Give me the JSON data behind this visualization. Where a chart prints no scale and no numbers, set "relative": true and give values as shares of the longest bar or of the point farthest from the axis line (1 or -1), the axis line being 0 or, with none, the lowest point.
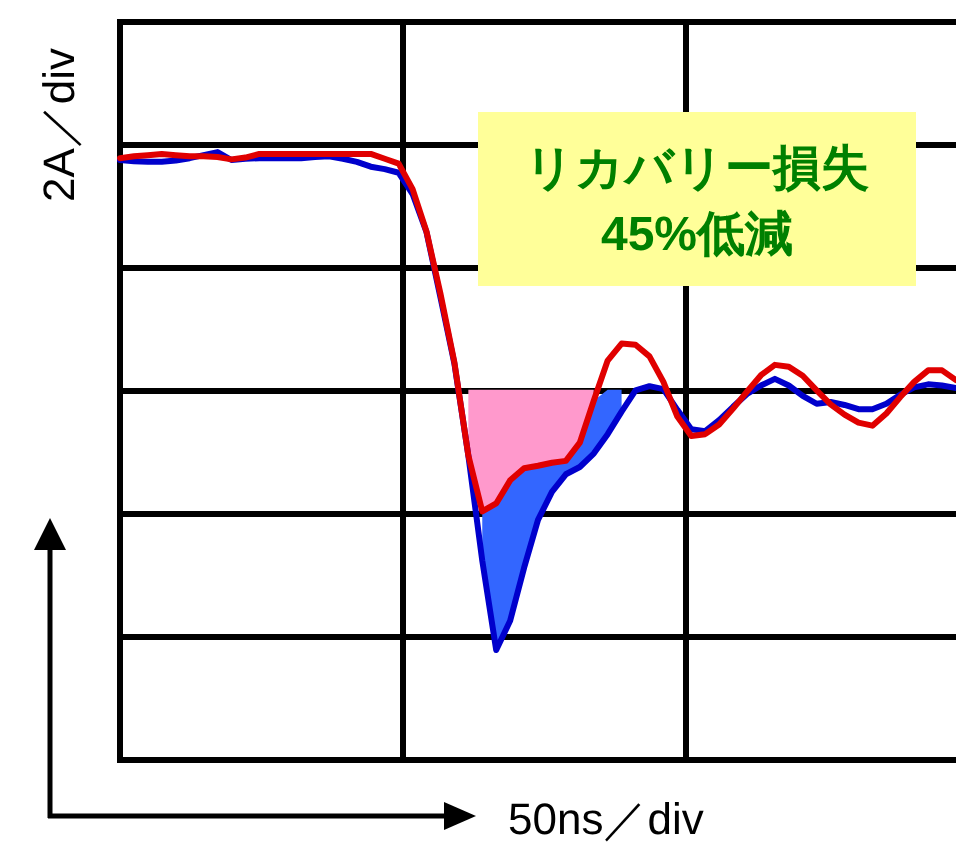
{
  "chart_data": {
    "type": "line",
    "relative": true,
    "grid": true,
    "xlabel": "50ns／div",
    "ylabel": "2A／div",
    "annotations": [
      "リカバリー損失\n45%低減"
    ],
    "categories": [
      null,
      null,
      null,
      null,
      null,
      null,
      null,
      null,
      null,
      null,
      null,
      null,
      null,
      null,
      null,
      null,
      null,
      null,
      null,
      null,
      null,
      null,
      null,
      null,
      null,
      null,
      null,
      null,
      null,
      null,
      null,
      null,
      null,
      null,
      null,
      null,
      null,
      null,
      null,
      null,
      null,
      null,
      null,
      null,
      null,
      null,
      null,
      null,
      null,
      null,
      null,
      null,
      null,
      null,
      null,
      null,
      null,
      null,
      null,
      null,
      null
    ],
    "series": [
      {
        "color": "#ff99cc",
        "values": [
          null,
          null,
          null,
          null,
          null,
          null,
          null,
          null,
          null,
          null,
          null,
          null,
          null,
          null,
          null,
          null,
          null,
          null,
          null,
          null,
          null,
          null,
          null,
          null,
          null,
          null,
          null,
          null,
          null,
          null,
          null,
          null,
          null,
          null,
          null,
          null,
          null,
          null,
          null,
          null,
          null,
          null,
          null,
          null,
          null,
          null,
          null,
          null,
          null,
          null,
          null,
          null,
          null,
          null,
          null,
          null,
          null,
          null,
          null,
          null,
          null
        ],
        "upper": [
          null,
          null,
          null,
          null,
          null,
          null,
          null,
          null,
          null,
          null,
          null,
          null,
          null,
          null,
          null,
          null,
          null,
          null,
          null,
          null,
          null,
          null,
          null,
          null,
          null,
          0.609,
          0.609,
          0.609,
          0.609,
          0.609,
          0.609,
          0.609,
          0.609,
          0.609,
          0.609,
          null,
          null,
          null,
          null,
          null,
          null,
          null,
          null,
          null,
          null,
          null,
          null,
          null,
          null,
          null,
          null,
          null,
          null,
          null,
          null,
          null,
          null,
          null,
          null,
          null,
          null
        ],
        "lower": [
          null,
          null,
          null,
          null,
          null,
          null,
          null,
          null,
          null,
          null,
          null,
          null,
          null,
          null,
          null,
          null,
          null,
          null,
          null,
          null,
          null,
          null,
          null,
          null,
          null,
          0.501,
          0.409,
          0.422,
          0.46,
          0.48,
          0.484,
          0.489,
          0.492,
          0.522,
          0.591,
          null,
          null,
          null,
          null,
          null,
          null,
          null,
          null,
          null,
          null,
          null,
          null,
          null,
          null,
          null,
          null,
          null,
          null,
          null,
          null,
          null,
          null,
          null,
          null,
          null,
          null
        ]
      },
      {
        "color": "#3366ff",
        "values": [
          null,
          null,
          null,
          null,
          null,
          null,
          null,
          null,
          null,
          null,
          null,
          null,
          null,
          null,
          null,
          null,
          null,
          null,
          null,
          null,
          null,
          null,
          null,
          null,
          null,
          null,
          null,
          null,
          null,
          null,
          null,
          null,
          null,
          null,
          null,
          null,
          null,
          null,
          null,
          null,
          null,
          null,
          null,
          null,
          null,
          null,
          null,
          null,
          null,
          null,
          null,
          null,
          null,
          null,
          null,
          null,
          null,
          null,
          null,
          null,
          null
        ],
        "upper": [
          null,
          null,
          null,
          null,
          null,
          null,
          null,
          null,
          null,
          null,
          null,
          null,
          null,
          null,
          null,
          null,
          null,
          null,
          null,
          null,
          null,
          null,
          null,
          null,
          null,
          null,
          0.409,
          0.422,
          0.46,
          0.48,
          0.484,
          0.489,
          0.492,
          0.522,
          0.591,
          0.609,
          0.609,
          null,
          null,
          null,
          null,
          null,
          null,
          null,
          null,
          null,
          null,
          null,
          null,
          null,
          null,
          null,
          null,
          null,
          null,
          null,
          null,
          null,
          null,
          null,
          null
        ],
        "lower": [
          null,
          null,
          null,
          null,
          null,
          null,
          null,
          null,
          null,
          null,
          null,
          null,
          null,
          null,
          null,
          null,
          null,
          null,
          null,
          null,
          null,
          null,
          null,
          null,
          null,
          null,
          0.328,
          0.181,
          0.229,
          0.316,
          0.395,
          0.441,
          0.47,
          0.482,
          0.504,
          0.536,
          0.573,
          null,
          null,
          null,
          null,
          null,
          null,
          null,
          null,
          null,
          null,
          null,
          null,
          null,
          null,
          null,
          null,
          null,
          null,
          null,
          null,
          null,
          null,
          null,
          null
        ]
      },
      {
        "color": "#0000cc",
        "values": [
          0.987,
          0.985,
          0.984,
          0.984,
          0.986,
          0.99,
          0.995,
          1,
          0.987,
          0.989,
          0.99,
          0.99,
          0.99,
          0.99,
          0.992,
          0.993,
          0.989,
          0.984,
          0.976,
          0.972,
          0.966,
          0.931,
          0.868,
          0.761,
          0.652,
          0.501,
          0.328,
          0.181,
          0.229,
          0.316,
          0.395,
          0.441,
          0.47,
          0.482,
          0.504,
          0.536,
          0.573,
          0.608,
          0.615,
          0.61,
          0.576,
          0.544,
          0.541,
          0.559,
          0.581,
          0.602,
          0.616,
          0.627,
          0.616,
          0.599,
          0.586,
          0.589,
          0.584,
          0.577,
          0.577,
          0.586,
          0.601,
          0.613,
          0.618,
          0.616,
          0.612
        ]
      },
      {
        "color": "#e00000",
        "values": [
          0.99,
          0.993,
          0.995,
          0.997,
          0.995,
          0.993,
          0.993,
          0.992,
          0.988,
          0.991,
          0.997,
          0.997,
          0.997,
          0.997,
          0.997,
          0.997,
          0.997,
          0.997,
          0.997,
          0.989,
          0.981,
          0.939,
          0.869,
          0.767,
          0.654,
          0.501,
          0.409,
          0.422,
          0.46,
          0.48,
          0.484,
          0.489,
          0.492,
          0.522,
          0.591,
          0.657,
          0.685,
          0.683,
          0.664,
          0.622,
          0.565,
          0.533,
          0.536,
          0.552,
          0.578,
          0.606,
          0.633,
          0.65,
          0.647,
          0.632,
          0.608,
          0.585,
          0.568,
          0.555,
          0.55,
          0.57,
          0.597,
          0.622,
          0.641,
          0.641,
          0.625
        ]
      }
    ]
  }
}
